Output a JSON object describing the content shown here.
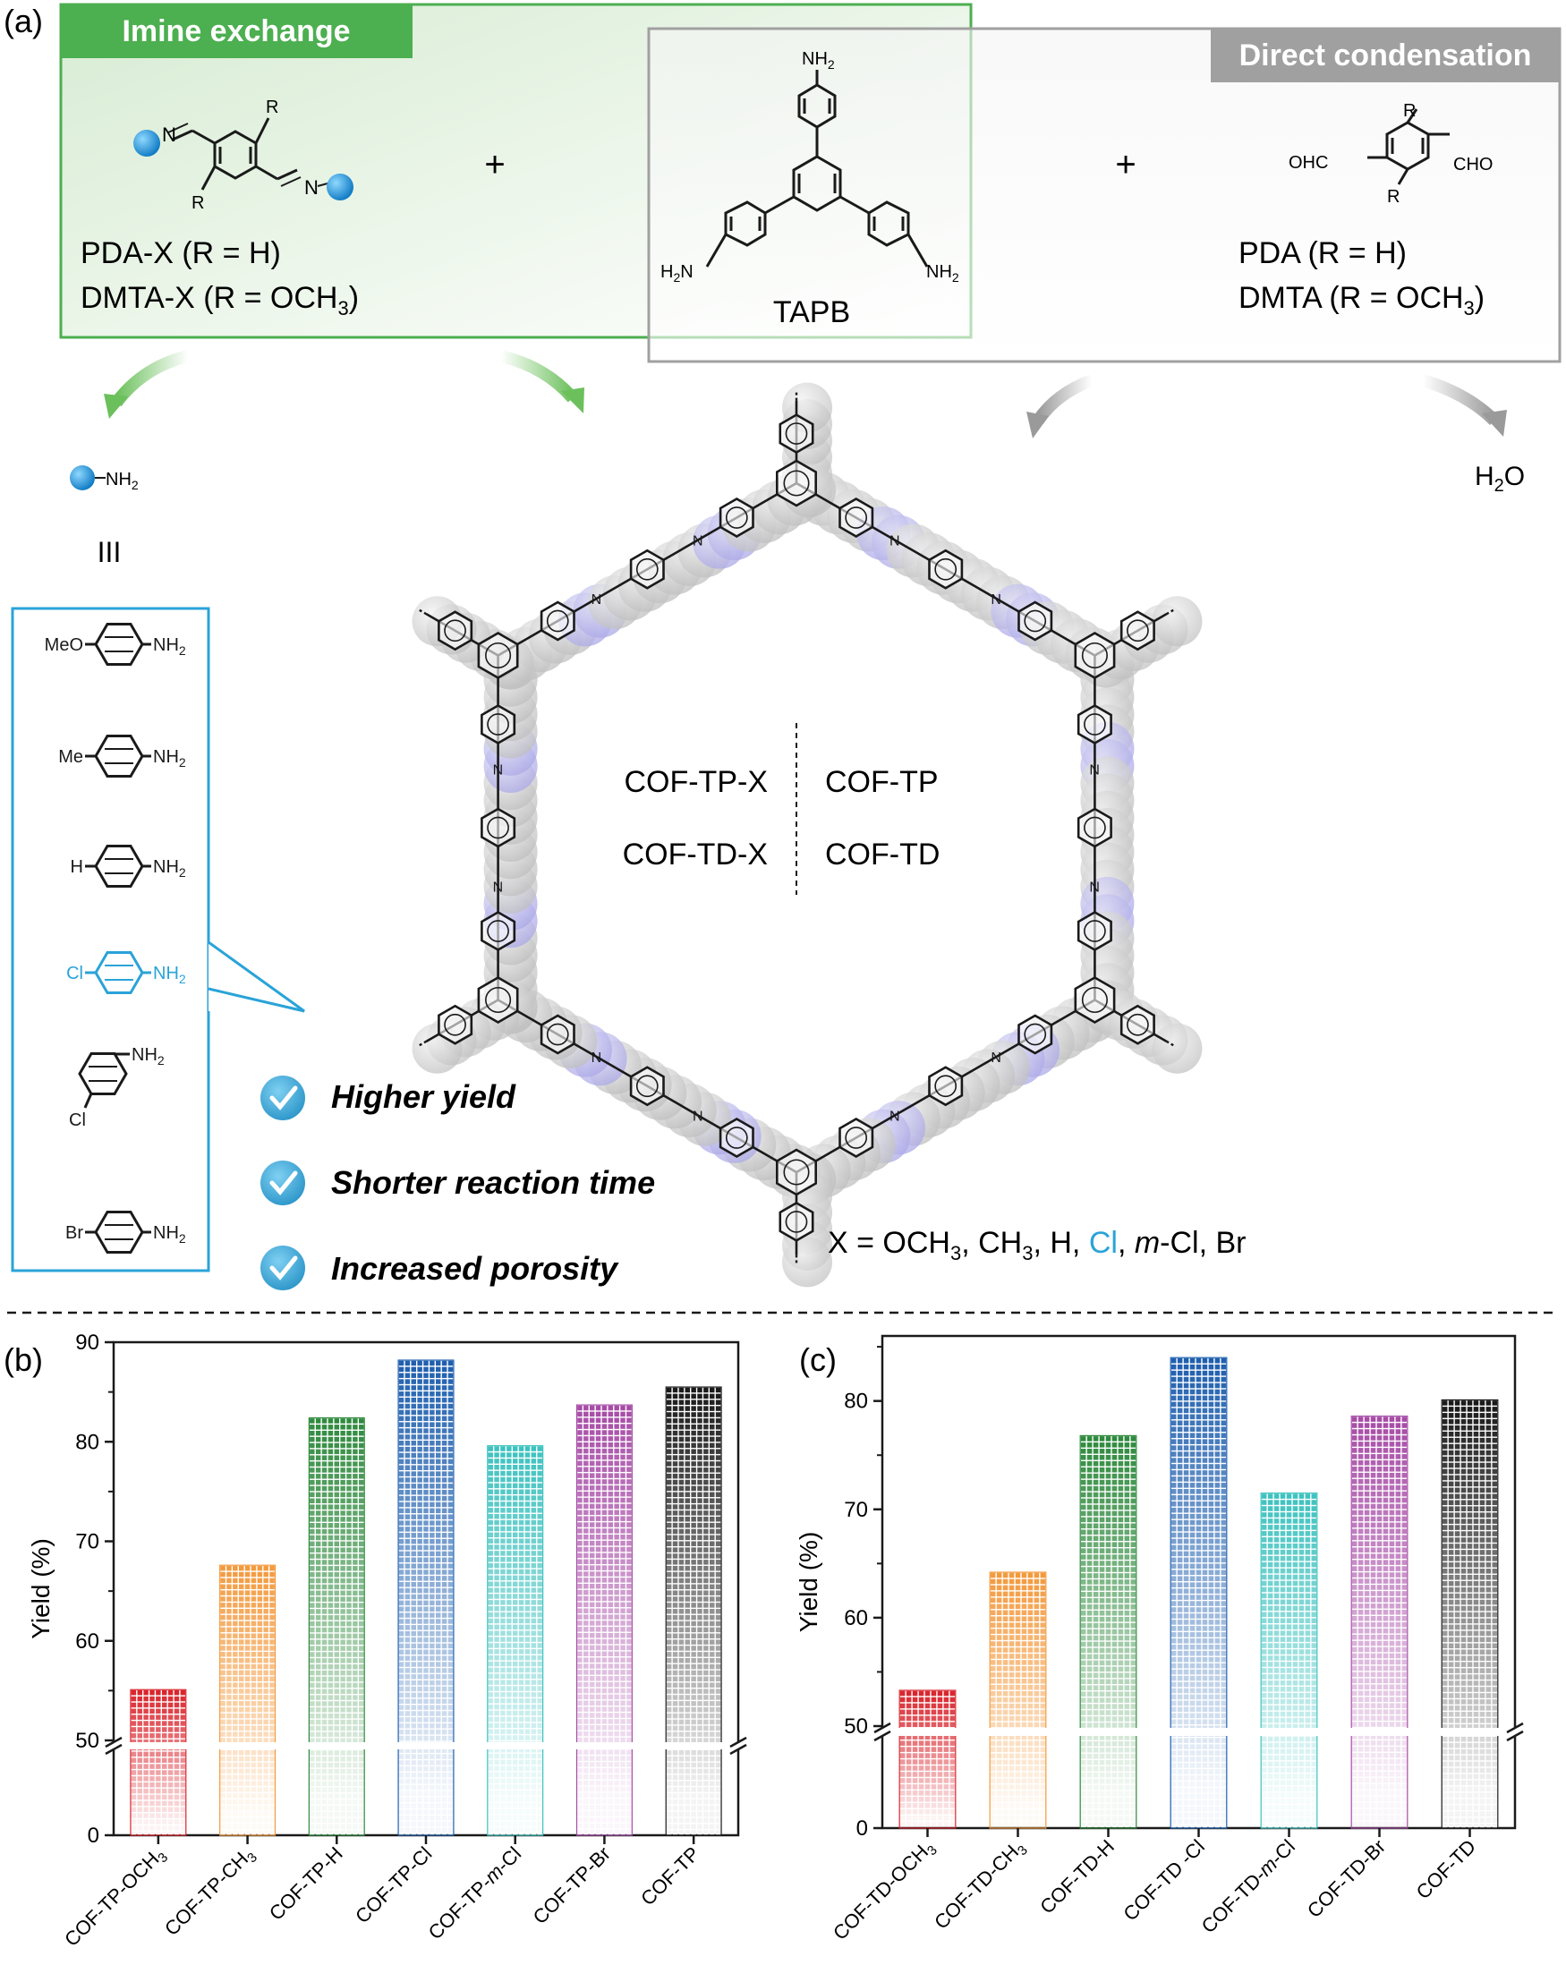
{
  "panel_a": {
    "label": "(a)",
    "imine_exchange_tag": "Imine exchange",
    "direct_condensation_tag": "Direct condensation",
    "plus": "+",
    "r_label": "R",
    "imine_n": "N",
    "ohc": "OHC",
    "cho": "CHO",
    "nh2_text": "NH",
    "subscript_2": "2",
    "subscript_3": "3",
    "h2n_h": "H",
    "h2n_n": "N",
    "pda_x": "PDA-X (R = H)",
    "dmta_x_main": "DMTA-X (R = OCH",
    "dmta_x_close": ")",
    "tapb": "TAPB",
    "pda": "PDA (R = H)",
    "dmta_main": "DMTA (R = OCH",
    "dmta_close": ")",
    "water_h": "H",
    "water_o": "O",
    "equiv_sign": "III",
    "amines": [
      {
        "prefix": "MeO",
        "suffix": "NH"
      },
      {
        "prefix": "Me",
        "suffix": "NH"
      },
      {
        "prefix": "H",
        "suffix": "NH"
      },
      {
        "prefix": "Cl",
        "suffix": "NH"
      },
      {
        "prefix": "Cl",
        "suffix": "NH"
      },
      {
        "prefix": "Br",
        "suffix": "NH"
      }
    ],
    "cof_names": {
      "tp_x": "COF-TP-X",
      "tp": "COF-TP",
      "td_x": "COF-TD-X",
      "td": "COF-TD"
    },
    "advantages": [
      "Higher yield",
      "Shorter reaction time",
      "Increased porosity"
    ],
    "x_def": {
      "lead": "X = OCH",
      "sub": "3",
      "part2": ", CH",
      "sub2": "3",
      "part3": ", H, ",
      "cl": "Cl",
      "part4": ", ",
      "m": "m",
      "part5": "-Cl, Br"
    },
    "colors": {
      "green": "#4caf50",
      "grey": "#a0a0a0",
      "blue": "#2aa3d8",
      "check": "#3aa8d8"
    }
  },
  "chart_data": [
    {
      "panel": "(b)",
      "type": "bar",
      "ylabel": "Yield (%)",
      "axis_break": {
        "lower": [
          0,
          5
        ],
        "upper": [
          50,
          90
        ]
      },
      "yticks": [
        0,
        50,
        60,
        70,
        80,
        90
      ],
      "categories": [
        "COF-TP-OCH3",
        "COF-TP-CH3",
        "COF-TP-H",
        "COF-TP-Cl",
        "COF-TP-m-Cl",
        "COF-TP-Br",
        "COF-TP"
      ],
      "tick_labels": [
        {
          "main": "COF-TP-OCH",
          "sub": "3"
        },
        {
          "main": "COF-TP-CH",
          "sub": "3"
        },
        {
          "main": "COF-TP-H"
        },
        {
          "main": "COF-TP-Cl"
        },
        {
          "main": "COF-TP-",
          "ital": "m",
          "tail": "-Cl"
        },
        {
          "main": "COF-TP-Br"
        },
        {
          "main": "COF-TP"
        }
      ],
      "values": [
        55.1,
        67.6,
        82.4,
        88.2,
        79.6,
        83.7,
        85.5
      ],
      "colors": [
        "#d9262e",
        "#f39a3e",
        "#2f8a3e",
        "#1f5fae",
        "#3ec2bf",
        "#a64ca6",
        "#1a1a1a"
      ]
    },
    {
      "panel": "(c)",
      "type": "bar",
      "ylabel": "Yield (%)",
      "axis_break": {
        "lower": [
          0,
          5
        ],
        "upper": [
          50,
          86
        ]
      },
      "yticks": [
        0,
        50,
        60,
        70,
        80
      ],
      "categories": [
        "COF-TD-OCH3",
        "COF-TD-CH3",
        "COF-TD-H",
        "COF-TD -Cl",
        "COF-TD-m-Cl",
        "COF-TD-Br",
        "COF-TD"
      ],
      "tick_labels": [
        {
          "main": "COF-TD-OCH",
          "sub": "3"
        },
        {
          "main": "COF-TD-CH",
          "sub": "3"
        },
        {
          "main": "COF-TD-H"
        },
        {
          "main": "COF-TD -Cl"
        },
        {
          "main": "COF-TD-",
          "ital": "m",
          "tail": "-Cl"
        },
        {
          "main": "COF-TD-Br"
        },
        {
          "main": "COF-TD"
        }
      ],
      "values": [
        53.3,
        64.2,
        76.8,
        84.0,
        71.5,
        78.6,
        80.1
      ],
      "colors": [
        "#d9262e",
        "#f39a3e",
        "#2f8a3e",
        "#1f5fae",
        "#3ec2bf",
        "#a64ca6",
        "#1a1a1a"
      ]
    }
  ]
}
